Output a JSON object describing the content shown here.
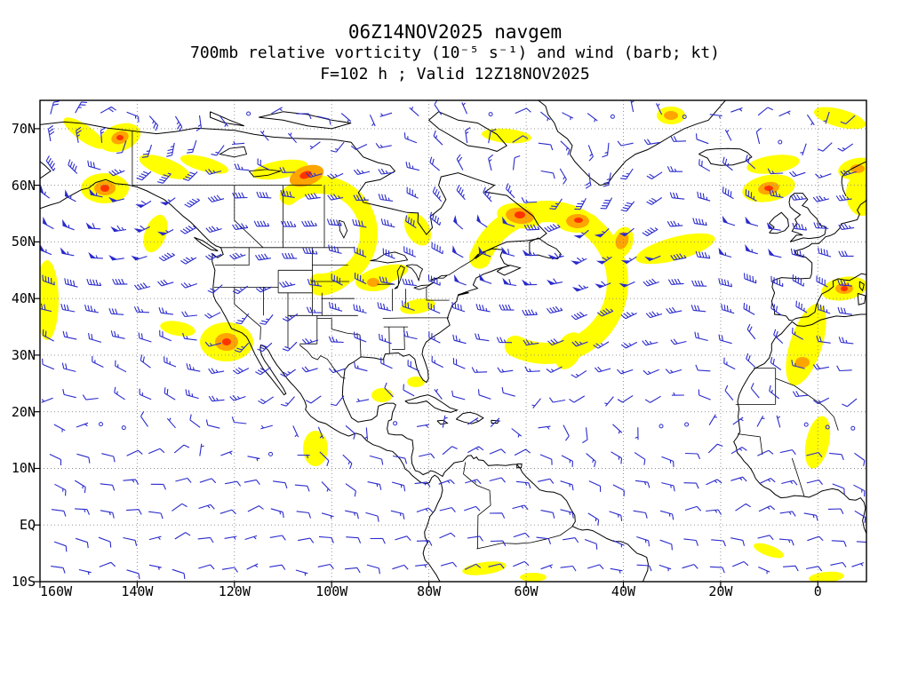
{
  "header": {
    "line1": "06Z14NOV2025 navgem",
    "line2": "700mb relative vorticity (10⁻⁵ s⁻¹) and wind (barb; kt)",
    "line3": "F=102 h ; Valid 12Z18NOV2025"
  },
  "axes": {
    "y_labels": [
      {
        "text": "70N",
        "lat": 70
      },
      {
        "text": "60N",
        "lat": 60
      },
      {
        "text": "50N",
        "lat": 50
      },
      {
        "text": "40N",
        "lat": 40
      },
      {
        "text": "30N",
        "lat": 30
      },
      {
        "text": "20N",
        "lat": 20
      },
      {
        "text": "10N",
        "lat": 10
      },
      {
        "text": "EQ",
        "lat": 0
      },
      {
        "text": "10S",
        "lat": -10
      }
    ],
    "x_labels": [
      {
        "text": "160W",
        "lon": -160
      },
      {
        "text": "140W",
        "lon": -140
      },
      {
        "text": "120W",
        "lon": -120
      },
      {
        "text": "100W",
        "lon": -100
      },
      {
        "text": "80W",
        "lon": -80
      },
      {
        "text": "60W",
        "lon": -60
      },
      {
        "text": "40W",
        "lon": -40
      },
      {
        "text": "20W",
        "lon": -20
      },
      {
        "text": "0",
        "lon": 0
      }
    ]
  },
  "style": {
    "barb_color": "#2a2acc",
    "shade_yellow": "#ffff00",
    "shade_orange": "#ffa500",
    "shade_red": "#ff3300",
    "coast_color": "#000000",
    "grid_color": "#888888",
    "frame_color": "#000000",
    "background": "#ffffff"
  },
  "map_data": {
    "projection": "latlon",
    "lon_range": [
      -160,
      10
    ],
    "lat_range": [
      -10,
      75
    ],
    "grid_interval_deg": {
      "lat": 10,
      "lon": 20
    },
    "field": "700mb relative vorticity and wind barbs (kt)",
    "vorticity_maxima": [
      {
        "lon": -143,
        "lat": 68,
        "intensity": "strong"
      },
      {
        "lon": -146,
        "lat": 59,
        "intensity": "strong"
      },
      {
        "lon": -106,
        "lat": 62,
        "intensity": "strong"
      },
      {
        "lon": -122,
        "lat": 32,
        "intensity": "strong"
      },
      {
        "lon": -91,
        "lat": 42,
        "intensity": "moderate"
      },
      {
        "lon": -61,
        "lat": 55,
        "intensity": "strong"
      },
      {
        "lon": -49,
        "lat": 54,
        "intensity": "strong"
      },
      {
        "lon": -30,
        "lat": 72,
        "intensity": "moderate"
      },
      {
        "lon": -10,
        "lat": 59,
        "intensity": "strong"
      },
      {
        "lon": 5,
        "lat": 42,
        "intensity": "moderate"
      },
      {
        "lon": -4,
        "lat": 28,
        "intensity": "moderate"
      },
      {
        "lon": -104,
        "lat": 13,
        "intensity": "weak"
      }
    ]
  }
}
